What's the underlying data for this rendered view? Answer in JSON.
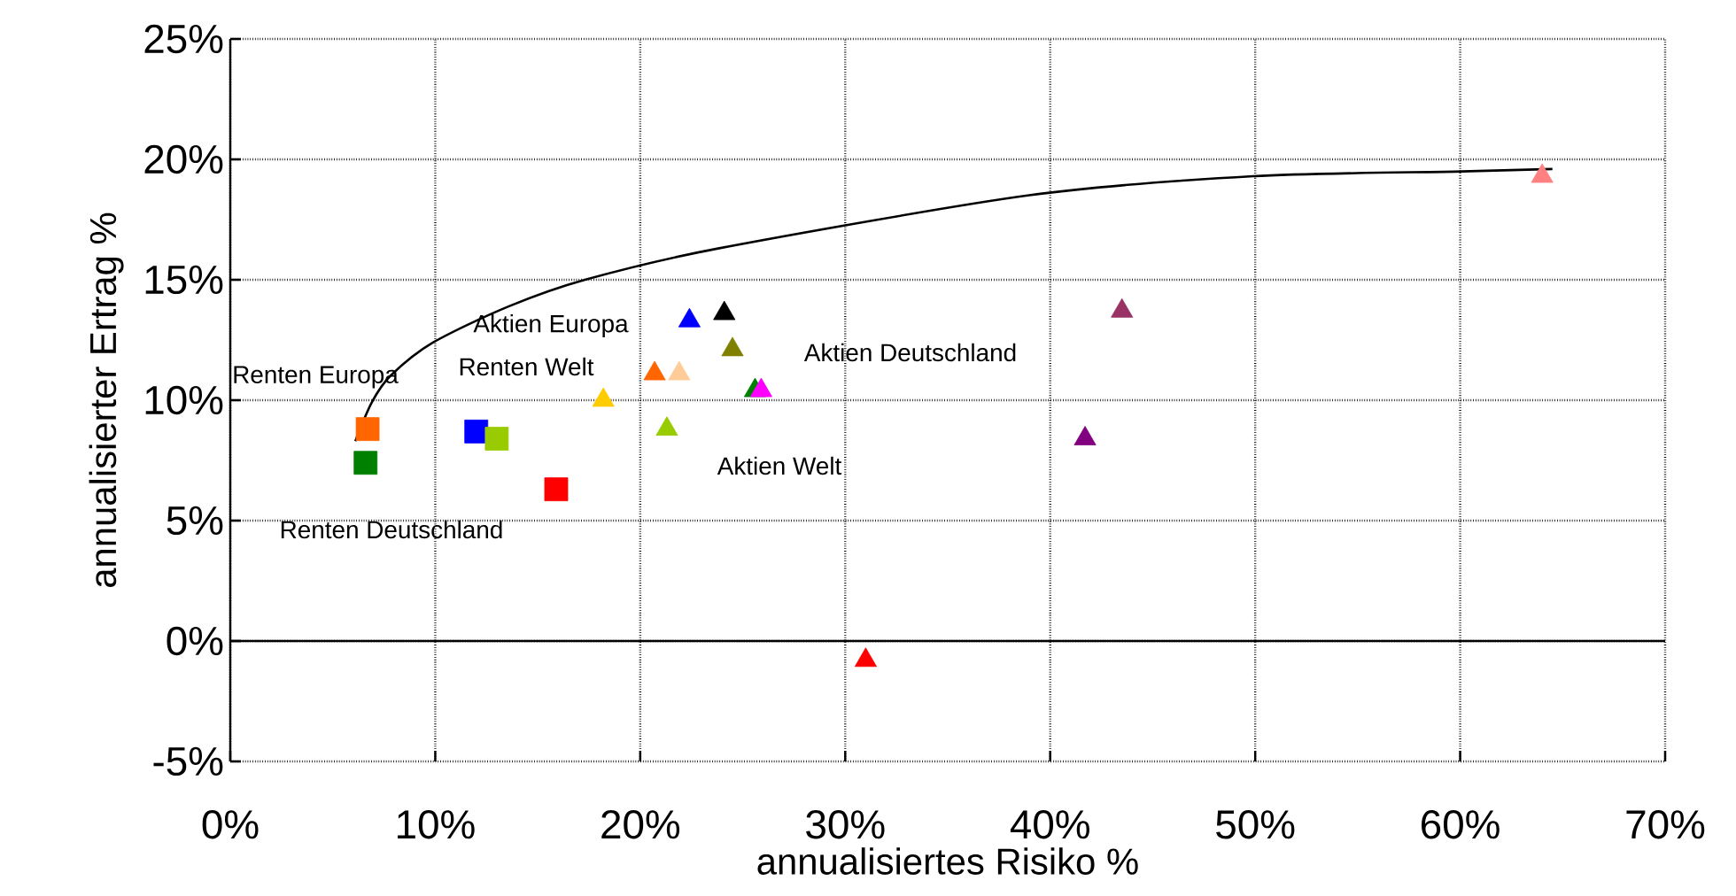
{
  "chart_data": {
    "type": "scatter",
    "xlabel": "annualisiertes Risiko %",
    "ylabel": "annualisierter Ertrag %",
    "xlim": [
      0,
      70
    ],
    "ylim": [
      -5,
      25
    ],
    "xticks": [
      {
        "value": 0,
        "label": "0%"
      },
      {
        "value": 10,
        "label": "10%"
      },
      {
        "value": 20,
        "label": "20%"
      },
      {
        "value": 30,
        "label": "30%"
      },
      {
        "value": 40,
        "label": "40%"
      },
      {
        "value": 50,
        "label": "50%"
      },
      {
        "value": 60,
        "label": "60%"
      },
      {
        "value": 70,
        "label": "70%"
      }
    ],
    "yticks": [
      {
        "value": -5,
        "label": "-5%"
      },
      {
        "value": 0,
        "label": "0%"
      },
      {
        "value": 5,
        "label": "5%"
      },
      {
        "value": 10,
        "label": "10%"
      },
      {
        "value": 15,
        "label": "15%"
      },
      {
        "value": 20,
        "label": "20%"
      },
      {
        "value": 25,
        "label": "25%"
      }
    ],
    "grid": true,
    "series": [
      {
        "marker": "square",
        "x": [
          6.7,
          6.6,
          12.0,
          13.0,
          15.9
        ],
        "values": [
          8.8,
          7.4,
          8.7,
          8.4,
          6.3
        ],
        "colors": [
          "#ff6600",
          "#008000",
          "#0000ff",
          "#99cc00",
          "#ff0000"
        ]
      },
      {
        "marker": "triangle",
        "x": [
          18.2,
          20.7,
          21.9,
          21.3,
          22.4,
          24.1,
          24.5,
          25.6,
          25.9,
          31.0,
          41.7,
          43.5,
          64.0
        ],
        "values": [
          10.0,
          11.1,
          11.1,
          8.8,
          13.3,
          13.6,
          12.1,
          10.4,
          10.4,
          -0.8,
          8.4,
          13.7,
          19.3
        ],
        "colors": [
          "#ffcc00",
          "#ff6600",
          "#ffcc99",
          "#99cc00",
          "#0000ff",
          "#000000",
          "#808000",
          "#008000",
          "#ff00ff",
          "#ff0000",
          "#800080",
          "#993366",
          "#ff8080"
        ]
      },
      {
        "type": "line",
        "marker": "none",
        "color": "#000000",
        "x": [
          6.1,
          6.9,
          7.8,
          9.9,
          13.6,
          17.3,
          23.8,
          38.9,
          49.9,
          60.1,
          64.5
        ],
        "values": [
          8.3,
          9.9,
          11.0,
          12.4,
          13.9,
          15.0,
          16.3,
          18.5,
          19.3,
          19.5,
          19.6
        ]
      }
    ],
    "annotations": [
      "Aktien Europa",
      "Renten Europa",
      "Renten Welt",
      "Aktien Deutschland",
      "Aktien Welt",
      "Renten Deutschland"
    ]
  }
}
